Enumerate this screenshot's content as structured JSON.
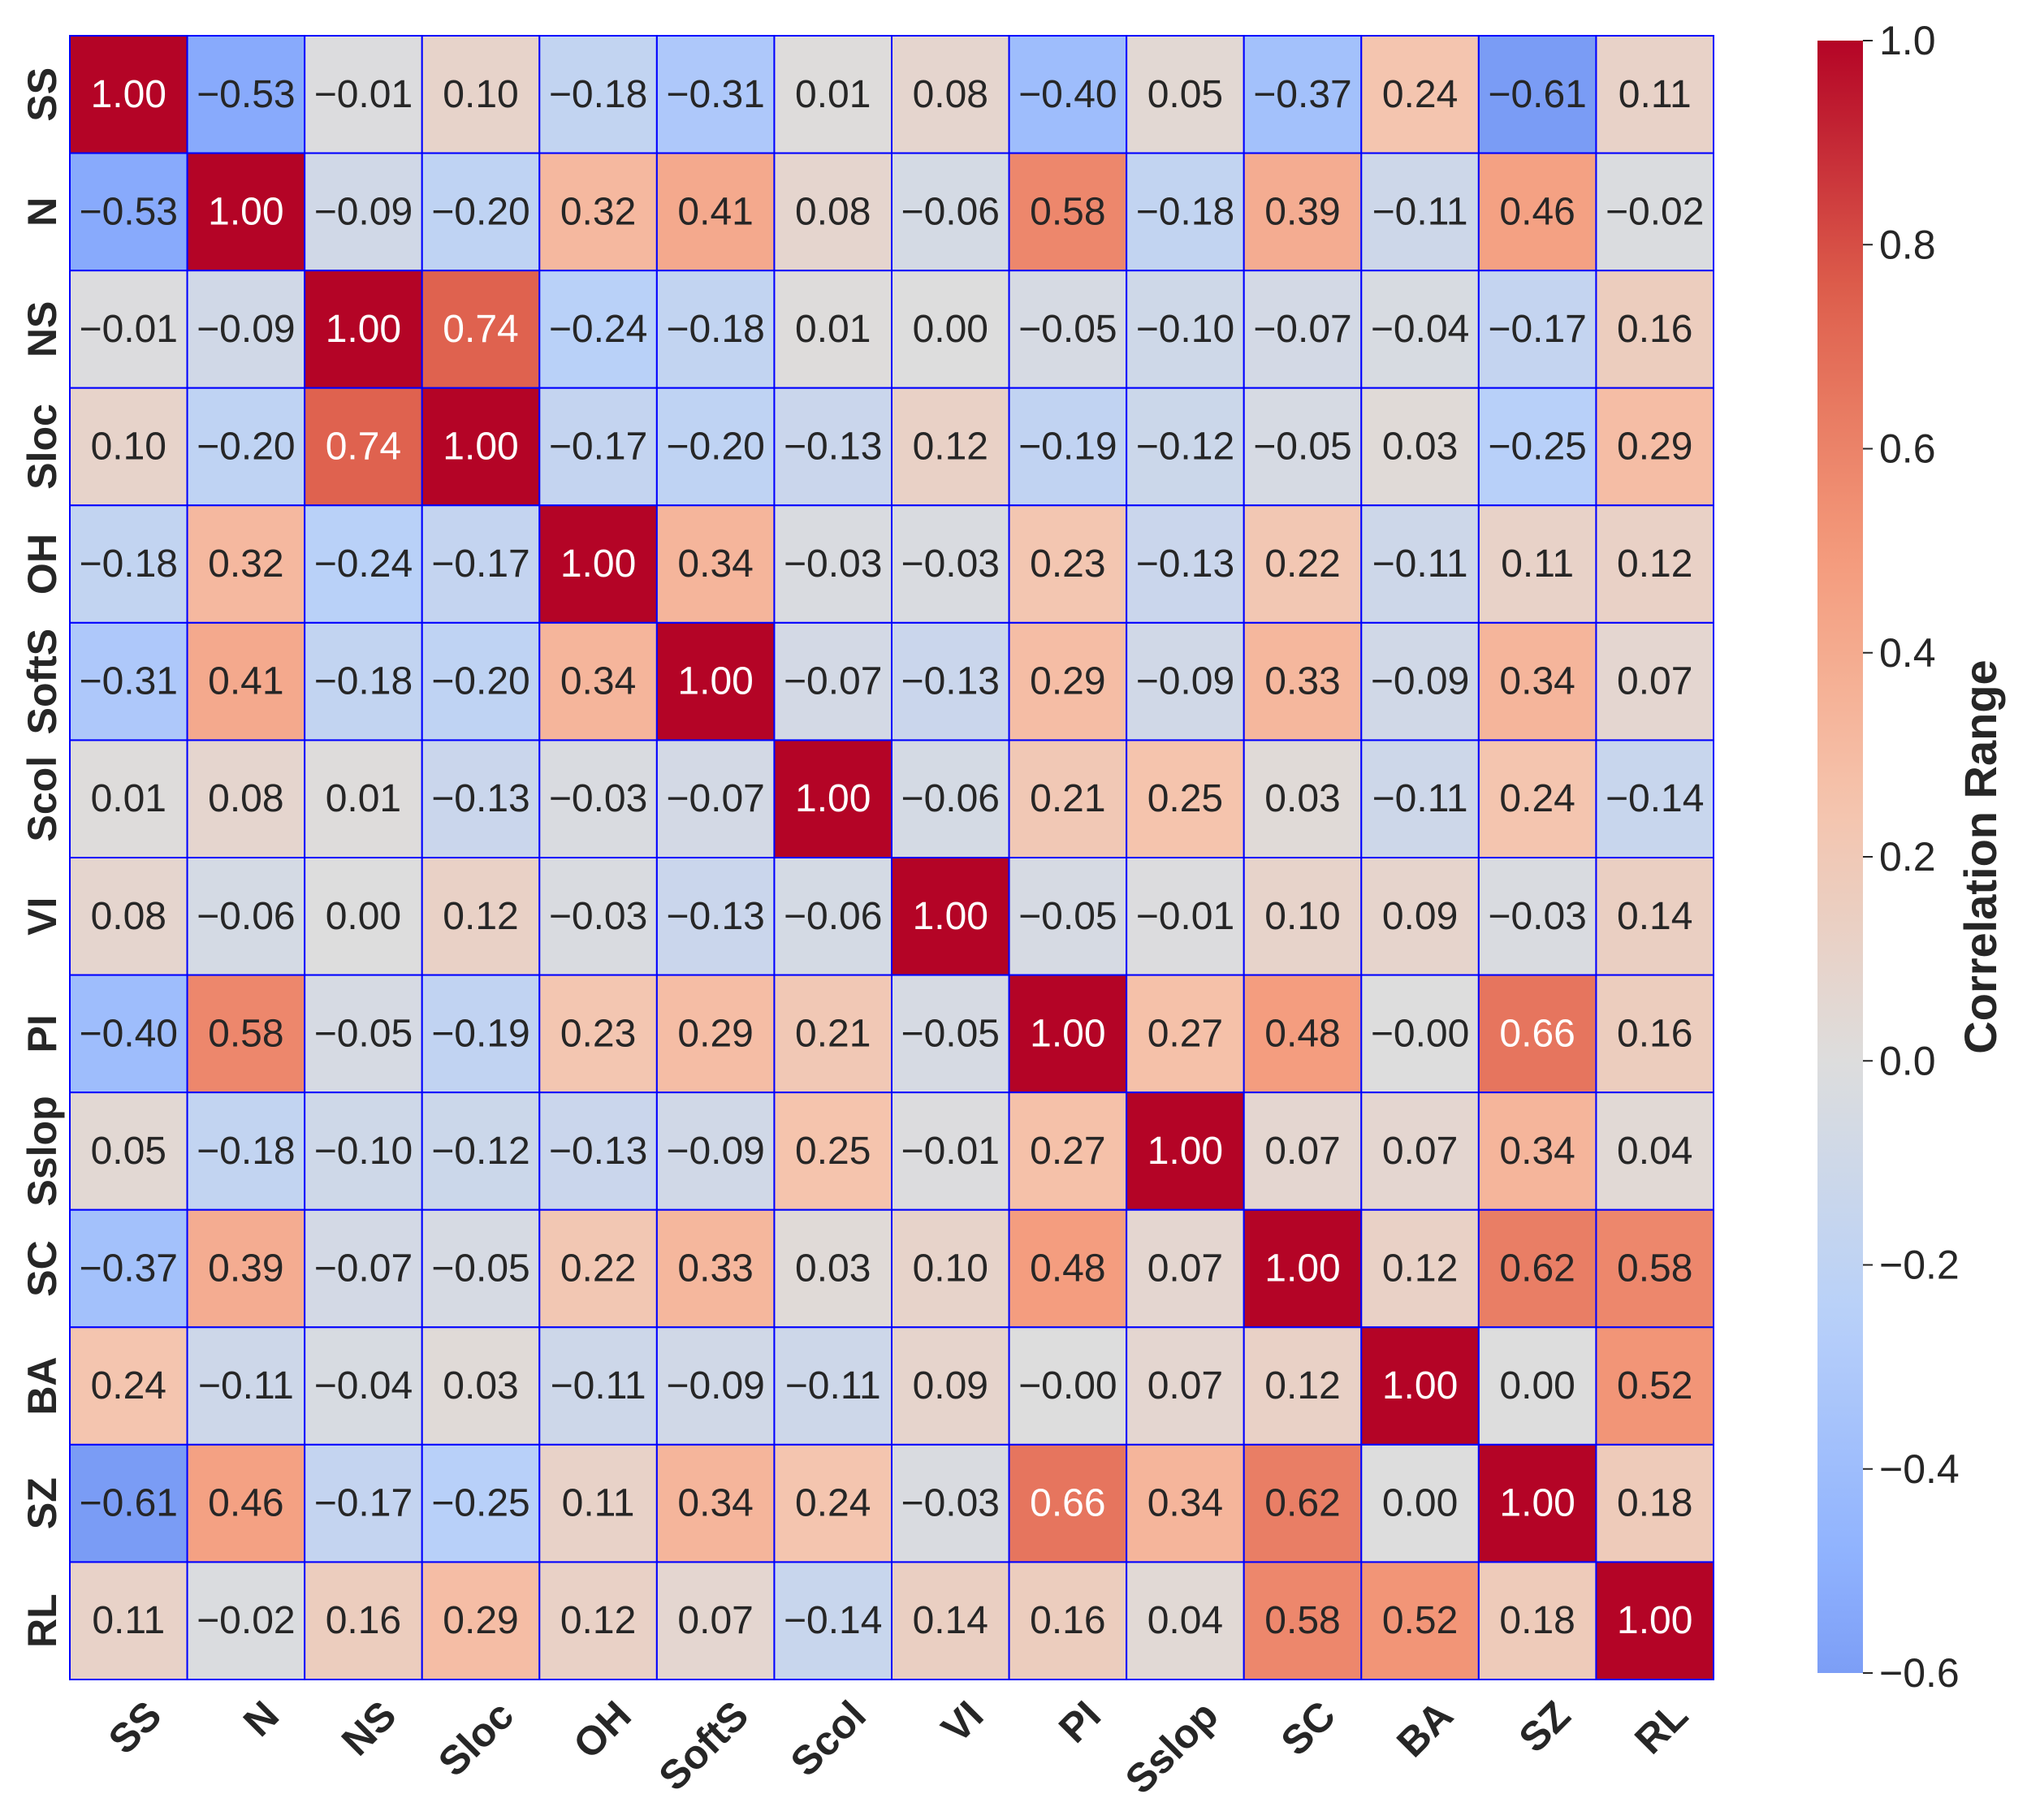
{
  "chart_data": {
    "type": "heatmap",
    "title": "",
    "xlabel": "",
    "ylabel": "",
    "labels": [
      "SS",
      "N",
      "NS",
      "Sloc",
      "OH",
      "SoftS",
      "Scol",
      "VI",
      "PI",
      "Sslop",
      "SC",
      "BA",
      "SZ",
      "RL"
    ],
    "values": [
      [
        1.0,
        -0.53,
        -0.01,
        0.1,
        -0.18,
        -0.31,
        0.01,
        0.08,
        -0.4,
        0.05,
        -0.37,
        0.24,
        -0.61,
        0.11
      ],
      [
        -0.53,
        1.0,
        -0.09,
        -0.2,
        0.32,
        0.41,
        0.08,
        -0.06,
        0.58,
        -0.18,
        0.39,
        -0.11,
        0.46,
        -0.02
      ],
      [
        -0.01,
        -0.09,
        1.0,
        0.74,
        -0.24,
        -0.18,
        0.01,
        0.0,
        -0.05,
        -0.1,
        -0.07,
        -0.04,
        -0.17,
        0.16
      ],
      [
        0.1,
        -0.2,
        0.74,
        1.0,
        -0.17,
        -0.2,
        -0.13,
        0.12,
        -0.19,
        -0.12,
        -0.05,
        0.03,
        -0.25,
        0.29
      ],
      [
        -0.18,
        0.32,
        -0.24,
        -0.17,
        1.0,
        0.34,
        -0.03,
        -0.03,
        0.23,
        -0.13,
        0.22,
        -0.11,
        0.11,
        0.12
      ],
      [
        -0.31,
        0.41,
        -0.18,
        -0.2,
        0.34,
        1.0,
        -0.07,
        -0.13,
        0.29,
        -0.09,
        0.33,
        -0.09,
        0.34,
        0.07
      ],
      [
        0.01,
        0.08,
        0.01,
        -0.13,
        -0.03,
        -0.07,
        1.0,
        -0.06,
        0.21,
        0.25,
        0.03,
        -0.11,
        0.24,
        -0.14
      ],
      [
        0.08,
        -0.06,
        0.0,
        0.12,
        -0.03,
        -0.13,
        -0.06,
        1.0,
        -0.05,
        -0.01,
        0.1,
        0.09,
        -0.03,
        0.14
      ],
      [
        -0.4,
        0.58,
        -0.05,
        -0.19,
        0.23,
        0.29,
        0.21,
        -0.05,
        1.0,
        0.27,
        0.48,
        -0.0,
        0.66,
        0.16
      ],
      [
        0.05,
        -0.18,
        -0.1,
        -0.12,
        -0.13,
        -0.09,
        0.25,
        -0.01,
        0.27,
        1.0,
        0.07,
        0.07,
        0.34,
        0.04
      ],
      [
        -0.37,
        0.39,
        -0.07,
        -0.05,
        0.22,
        0.33,
        0.03,
        0.1,
        0.48,
        0.07,
        1.0,
        0.12,
        0.62,
        0.58
      ],
      [
        0.24,
        -0.11,
        -0.04,
        0.03,
        -0.11,
        -0.09,
        -0.11,
        0.09,
        -0.0,
        0.07,
        0.12,
        1.0,
        0.0,
        0.52
      ],
      [
        -0.61,
        0.46,
        -0.17,
        -0.25,
        0.11,
        0.34,
        0.24,
        -0.03,
        0.66,
        0.34,
        0.62,
        0.0,
        1.0,
        0.18
      ],
      [
        0.11,
        -0.02,
        0.16,
        0.29,
        0.12,
        0.07,
        -0.14,
        0.14,
        0.16,
        0.04,
        0.58,
        0.52,
        0.18,
        1.0
      ]
    ],
    "colormap": "coolwarm",
    "vmin": -0.6,
    "vmax": 1.0,
    "value_format": "2 decimals",
    "colorbar": {
      "title": "Correlation Range",
      "ticks": [
        "1.0",
        "0.8",
        "0.6",
        "0.4",
        "0.2",
        "0.0",
        "−0.2",
        "−0.4",
        "−0.6"
      ],
      "tick_values": [
        1.0,
        0.8,
        0.6,
        0.4,
        0.2,
        0.0,
        -0.2,
        -0.4,
        -0.6
      ]
    },
    "grid_color": "#0000ff"
  }
}
